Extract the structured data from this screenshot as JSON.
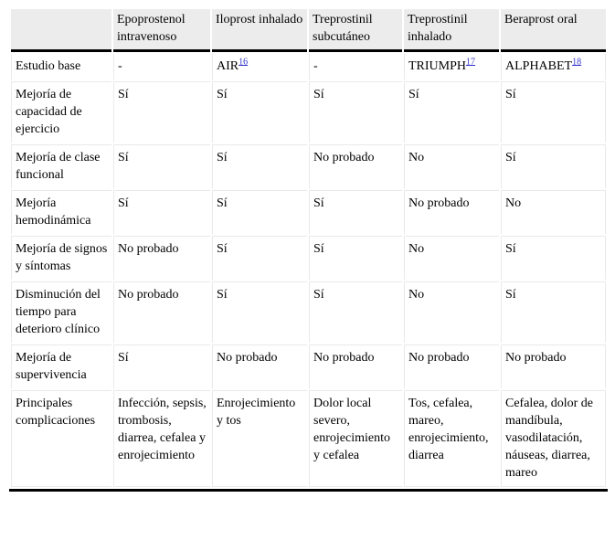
{
  "colors": {
    "header_bg": "#ececec",
    "rule_light": "#e9e9e9",
    "rule_dark": "#000000",
    "link_color": "#3333cc",
    "text_color": "#000000"
  },
  "table": {
    "columns": [
      "",
      "Epoprostenol intravenoso",
      "Iloprost inhalado",
      "Treprostinil subcutáneo",
      "Treprostinil inhalado",
      "Beraprost oral"
    ],
    "rows": [
      {
        "label": "Estudio base",
        "cells": [
          {
            "text": "-"
          },
          {
            "text": "AIR",
            "ref": "16"
          },
          {
            "text": "-"
          },
          {
            "text": "TRIUMPH",
            "ref": "17"
          },
          {
            "text": "ALPHABET",
            "ref": "18"
          }
        ]
      },
      {
        "label": "Mejoría de capacidad de ejercicio",
        "cells": [
          {
            "text": "Sí"
          },
          {
            "text": "Sí"
          },
          {
            "text": "Sí"
          },
          {
            "text": "Sí"
          },
          {
            "text": "Sí"
          }
        ]
      },
      {
        "label": "Mejoría de clase funcional",
        "cells": [
          {
            "text": "Sí"
          },
          {
            "text": "Sí"
          },
          {
            "text": "No probado"
          },
          {
            "text": "No"
          },
          {
            "text": "Sí"
          }
        ]
      },
      {
        "label": "Mejoría hemodinámica",
        "cells": [
          {
            "text": "Sí"
          },
          {
            "text": "Sí"
          },
          {
            "text": "Sí"
          },
          {
            "text": "No probado"
          },
          {
            "text": "No"
          }
        ]
      },
      {
        "label": "Mejoría de signos y síntomas",
        "cells": [
          {
            "text": "No probado"
          },
          {
            "text": "Sí"
          },
          {
            "text": "Sí"
          },
          {
            "text": "No"
          },
          {
            "text": "Sí"
          }
        ]
      },
      {
        "label": "Disminución del tiempo para deterioro clínico",
        "cells": [
          {
            "text": "No probado"
          },
          {
            "text": "Sí"
          },
          {
            "text": "Sí"
          },
          {
            "text": "No"
          },
          {
            "text": "Sí"
          }
        ]
      },
      {
        "label": "Mejoría de supervivencia",
        "cells": [
          {
            "text": "Sí"
          },
          {
            "text": "No probado"
          },
          {
            "text": "No probado"
          },
          {
            "text": "No probado"
          },
          {
            "text": "No probado"
          }
        ]
      },
      {
        "label": "Principales complicaciones",
        "cells": [
          {
            "text": "Infección, sepsis, trombosis, diarrea, cefalea y enrojecimiento"
          },
          {
            "text": "Enrojecimiento y tos"
          },
          {
            "text": "Dolor local severo, enrojecimiento y cefalea"
          },
          {
            "text": "Tos, cefalea, mareo, enrojecimiento, diarrea"
          },
          {
            "text": "Cefalea, dolor de mandíbula, vasodilatación, náuseas, diarrea, mareo"
          }
        ]
      }
    ]
  }
}
